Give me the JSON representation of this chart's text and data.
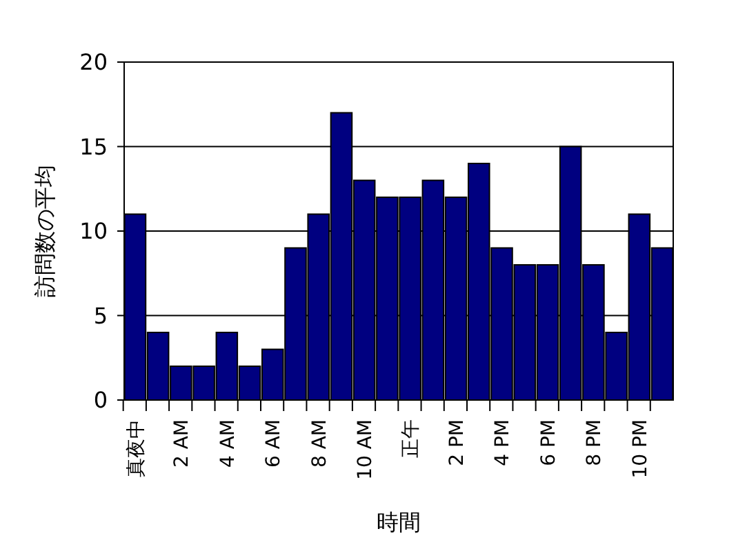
{
  "chart_data": {
    "type": "bar",
    "xlabel": "時間",
    "ylabel": "訪問数の平均",
    "categories": [
      "真夜中",
      null,
      "2 AM",
      null,
      "4 AM",
      null,
      "6 AM",
      null,
      "8 AM",
      null,
      "10 AM",
      null,
      "正午",
      null,
      "2 PM",
      null,
      "4 PM",
      null,
      "6 PM",
      null,
      "8 PM",
      null,
      "10 PM",
      null
    ],
    "values": [
      11,
      4,
      2,
      2,
      4,
      2,
      3,
      9,
      11,
      17,
      13,
      12,
      12,
      13,
      12,
      14,
      9,
      8,
      8,
      15,
      8,
      4,
      11,
      9
    ],
    "color": "#000080",
    "ylim": [
      0,
      20
    ],
    "yticks": [
      0,
      5,
      10,
      15,
      20
    ],
    "grid": "y"
  }
}
